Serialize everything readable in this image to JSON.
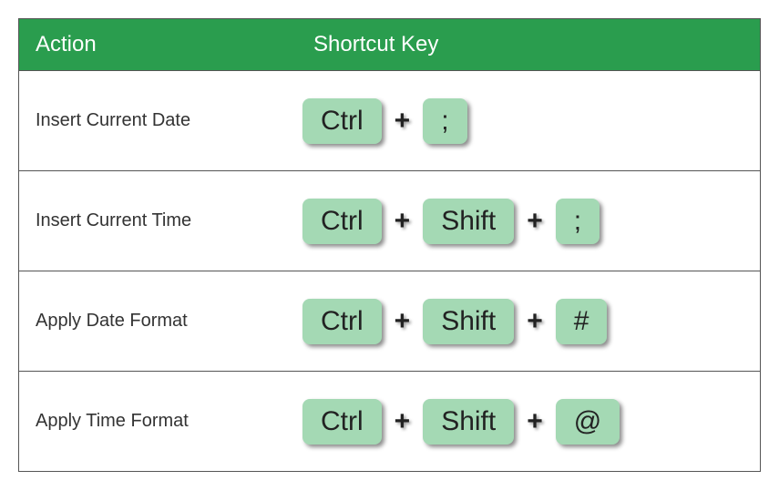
{
  "table": {
    "header": {
      "action": "Action",
      "shortcut": "Shortcut Key",
      "bg_color": "#2a9d4e",
      "text_color": "#ffffff",
      "font_size": 24
    },
    "key_style": {
      "bg_color": "#a4d9b4",
      "text_color": "#222222",
      "font_size": 30,
      "border_radius": 8,
      "shadow": "3px 3px 5px rgba(0,0,0,0.45)"
    },
    "plus_glyph": "+",
    "border_color": "#555555",
    "rows": [
      {
        "action": "Insert Current Date",
        "keys": [
          "Ctrl",
          ";"
        ]
      },
      {
        "action": "Insert Current Time",
        "keys": [
          "Ctrl",
          "Shift",
          ";"
        ]
      },
      {
        "action": "Apply Date Format",
        "keys": [
          "Ctrl",
          "Shift",
          "#"
        ]
      },
      {
        "action": "Apply Time Format",
        "keys": [
          "Ctrl",
          "Shift",
          "@"
        ]
      }
    ]
  }
}
